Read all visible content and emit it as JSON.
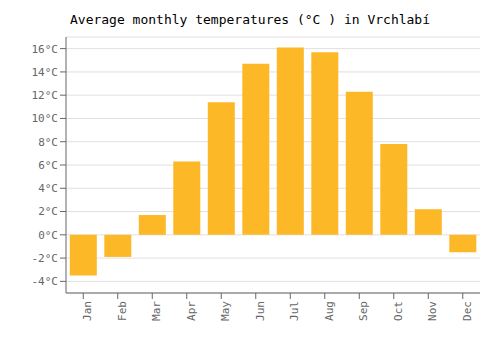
{
  "chart_data": {
    "type": "bar",
    "title": "Average monthly temperatures (°C ) in Vrchlabí",
    "categories": [
      "Jan",
      "Feb",
      "Mar",
      "Apr",
      "May",
      "Jun",
      "Jul",
      "Aug",
      "Sep",
      "Oct",
      "Nov",
      "Dec"
    ],
    "values": [
      -3.5,
      -1.9,
      1.7,
      6.3,
      11.4,
      14.7,
      16.1,
      15.7,
      12.3,
      7.8,
      2.2,
      -1.5
    ],
    "color": "#FDB827",
    "ylim": [
      -5,
      17
    ],
    "yticks": [
      {
        "value": -4,
        "label": "-4°C"
      },
      {
        "value": -2,
        "label": "-2°C"
      },
      {
        "value": 0,
        "label": "0°C"
      },
      {
        "value": 2,
        "label": "2°C"
      },
      {
        "value": 4,
        "label": "4°C"
      },
      {
        "value": 6,
        "label": "6°C"
      },
      {
        "value": 8,
        "label": "8°C"
      },
      {
        "value": 10,
        "label": "10°C"
      },
      {
        "value": 12,
        "label": "12°C"
      },
      {
        "value": 14,
        "label": "14°C"
      },
      {
        "value": 16,
        "label": "16°C"
      }
    ],
    "grid": true
  }
}
